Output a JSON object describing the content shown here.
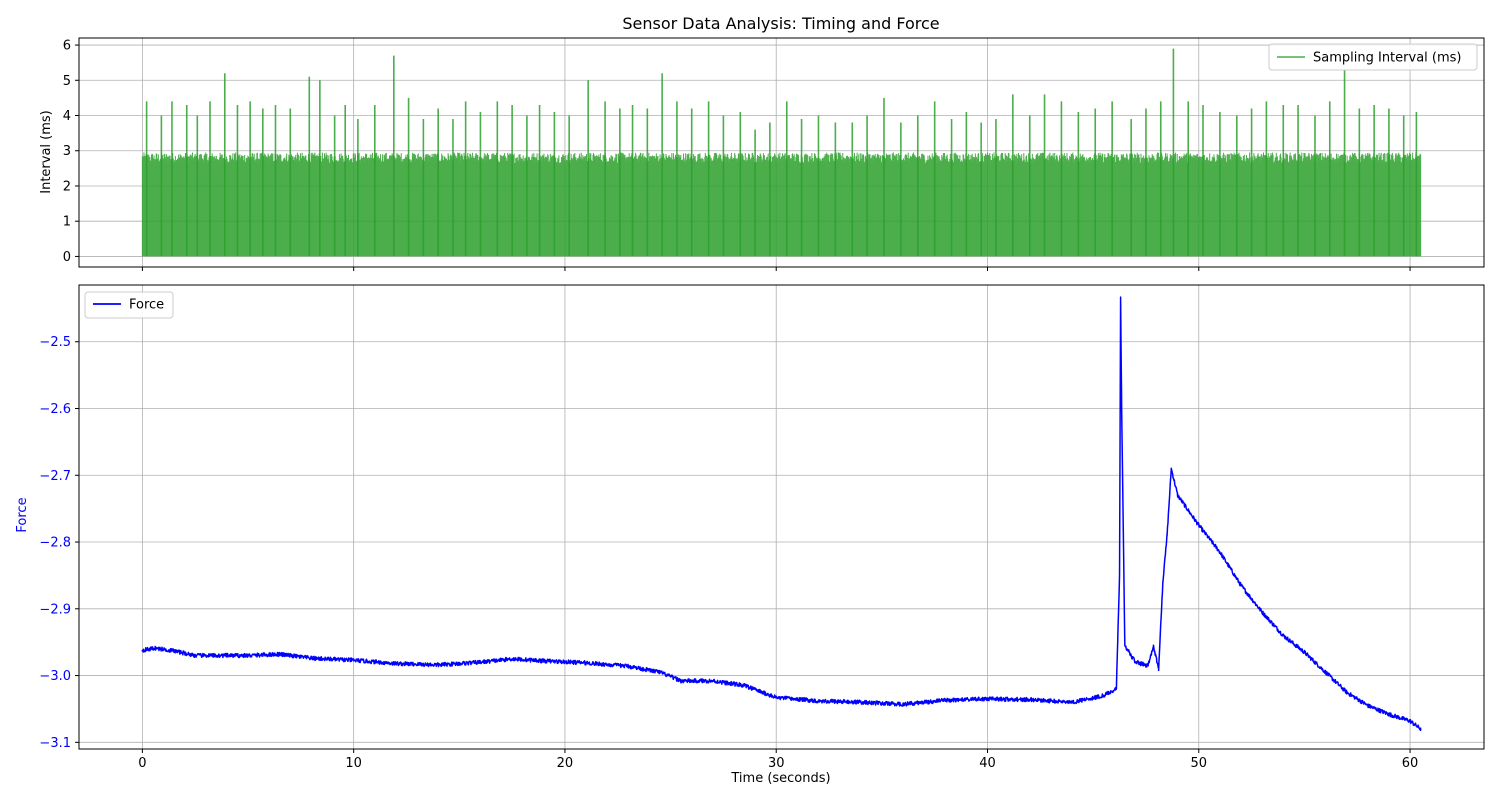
{
  "title": "Sensor Data Analysis: Timing and Force",
  "colors": {
    "interval": "#2ca02c",
    "force": "#0000ff",
    "grid": "#b0b0b0",
    "axis": "#000000"
  },
  "chart_data": [
    {
      "type": "line",
      "panel": "top",
      "ylabel": "Interval (ms)",
      "xlim": [
        -3,
        63.5
      ],
      "ylim": [
        -0.3,
        6.2
      ],
      "xticks": [
        0,
        10,
        20,
        30,
        40,
        50,
        60
      ],
      "yticks": [
        0,
        1,
        2,
        3,
        4,
        5,
        6
      ],
      "grid": true,
      "legend_position": "top-right",
      "series": [
        {
          "name": "Sampling Interval (ms)",
          "style": "dense oscillation between ~0 and ~3 ms with spikes",
          "min": 0,
          "typical_max": 2.9,
          "x_range": [
            0,
            60.5
          ],
          "spikes": [
            [
              0.2,
              4.4
            ],
            [
              0.9,
              4.0
            ],
            [
              1.4,
              4.4
            ],
            [
              2.1,
              4.3
            ],
            [
              2.6,
              4.0
            ],
            [
              3.2,
              4.4
            ],
            [
              3.9,
              5.2
            ],
            [
              4.5,
              4.3
            ],
            [
              5.1,
              4.4
            ],
            [
              5.7,
              4.2
            ],
            [
              6.3,
              4.3
            ],
            [
              7.0,
              4.2
            ],
            [
              7.9,
              5.1
            ],
            [
              8.4,
              5.0
            ],
            [
              9.1,
              4.0
            ],
            [
              9.6,
              4.3
            ],
            [
              10.2,
              3.9
            ],
            [
              11.0,
              4.3
            ],
            [
              11.9,
              5.7
            ],
            [
              12.6,
              4.5
            ],
            [
              13.3,
              3.9
            ],
            [
              14.0,
              4.2
            ],
            [
              14.7,
              3.9
            ],
            [
              15.3,
              4.4
            ],
            [
              16.0,
              4.1
            ],
            [
              16.8,
              4.4
            ],
            [
              17.5,
              4.3
            ],
            [
              18.2,
              4.0
            ],
            [
              18.8,
              4.3
            ],
            [
              19.5,
              4.1
            ],
            [
              20.2,
              4.0
            ],
            [
              21.1,
              5.0
            ],
            [
              21.9,
              4.4
            ],
            [
              22.6,
              4.2
            ],
            [
              23.2,
              4.3
            ],
            [
              23.9,
              4.2
            ],
            [
              24.6,
              5.2
            ],
            [
              25.3,
              4.4
            ],
            [
              26.0,
              4.2
            ],
            [
              26.8,
              4.4
            ],
            [
              27.5,
              4.0
            ],
            [
              28.3,
              4.1
            ],
            [
              29.0,
              3.6
            ],
            [
              29.7,
              3.8
            ],
            [
              30.5,
              4.4
            ],
            [
              31.2,
              3.9
            ],
            [
              32.0,
              4.0
            ],
            [
              32.8,
              3.8
            ],
            [
              33.6,
              3.8
            ],
            [
              34.3,
              4.0
            ],
            [
              35.1,
              4.5
            ],
            [
              35.9,
              3.8
            ],
            [
              36.7,
              4.0
            ],
            [
              37.5,
              4.4
            ],
            [
              38.3,
              3.9
            ],
            [
              39.0,
              4.1
            ],
            [
              39.7,
              3.8
            ],
            [
              40.4,
              3.9
            ],
            [
              41.2,
              4.6
            ],
            [
              42.0,
              4.0
            ],
            [
              42.7,
              4.6
            ],
            [
              43.5,
              4.4
            ],
            [
              44.3,
              4.1
            ],
            [
              45.1,
              4.2
            ],
            [
              45.9,
              4.4
            ],
            [
              46.8,
              3.9
            ],
            [
              47.5,
              4.2
            ],
            [
              48.2,
              4.4
            ],
            [
              48.8,
              5.9
            ],
            [
              49.5,
              4.4
            ],
            [
              50.2,
              4.3
            ],
            [
              51.0,
              4.1
            ],
            [
              51.8,
              4.0
            ],
            [
              52.5,
              4.2
            ],
            [
              53.2,
              4.4
            ],
            [
              54.0,
              4.3
            ],
            [
              54.7,
              4.3
            ],
            [
              55.5,
              4.0
            ],
            [
              56.2,
              4.4
            ],
            [
              56.9,
              5.3
            ],
            [
              57.6,
              4.2
            ],
            [
              58.3,
              4.3
            ],
            [
              59.0,
              4.2
            ],
            [
              59.7,
              4.0
            ],
            [
              60.3,
              4.1
            ]
          ]
        }
      ]
    },
    {
      "type": "line",
      "panel": "bottom",
      "xlabel": "Time (seconds)",
      "ylabel": "Force",
      "xlim": [
        -3,
        63.5
      ],
      "ylim": [
        -3.11,
        -2.415
      ],
      "xticks": [
        0,
        10,
        20,
        30,
        40,
        50,
        60
      ],
      "yticks": [
        -2.5,
        -2.6,
        -2.7,
        -2.8,
        -2.9,
        -3.0,
        -3.1
      ],
      "ytick_labels": [
        "−2.5",
        "−2.6",
        "−2.7",
        "−2.8",
        "−2.9",
        "−3.0",
        "−3.1"
      ],
      "grid": true,
      "legend_position": "top-left",
      "series": [
        {
          "name": "Force",
          "x": [
            0,
            0.6,
            1.5,
            2.5,
            4,
            5,
            6.5,
            8,
            10,
            12,
            14,
            16,
            17.5,
            19,
            21,
            23,
            24.5,
            25.5,
            27,
            28.5,
            30,
            32,
            34,
            36,
            38,
            40,
            42,
            44,
            45.5,
            46.1,
            46.25,
            46.3,
            46.35,
            46.5,
            47,
            47.6,
            47.85,
            48.1,
            48.3,
            48.5,
            48.7,
            49,
            50,
            51,
            52,
            53,
            54,
            55,
            56,
            57,
            58,
            59,
            60,
            60.5
          ],
          "y": [
            -2.962,
            -2.959,
            -2.963,
            -2.97,
            -2.97,
            -2.97,
            -2.968,
            -2.974,
            -2.977,
            -2.982,
            -2.984,
            -2.98,
            -2.975,
            -2.978,
            -2.981,
            -2.986,
            -2.995,
            -3.008,
            -3.008,
            -3.015,
            -3.033,
            -3.038,
            -3.04,
            -3.043,
            -3.037,
            -3.035,
            -3.036,
            -3.04,
            -3.03,
            -3.02,
            -2.85,
            -2.435,
            -2.6,
            -2.955,
            -2.98,
            -2.985,
            -2.955,
            -2.99,
            -2.86,
            -2.79,
            -2.69,
            -2.73,
            -2.775,
            -2.815,
            -2.865,
            -2.905,
            -2.94,
            -2.965,
            -2.995,
            -3.025,
            -3.045,
            -3.058,
            -3.068,
            -3.08
          ]
        }
      ]
    }
  ]
}
